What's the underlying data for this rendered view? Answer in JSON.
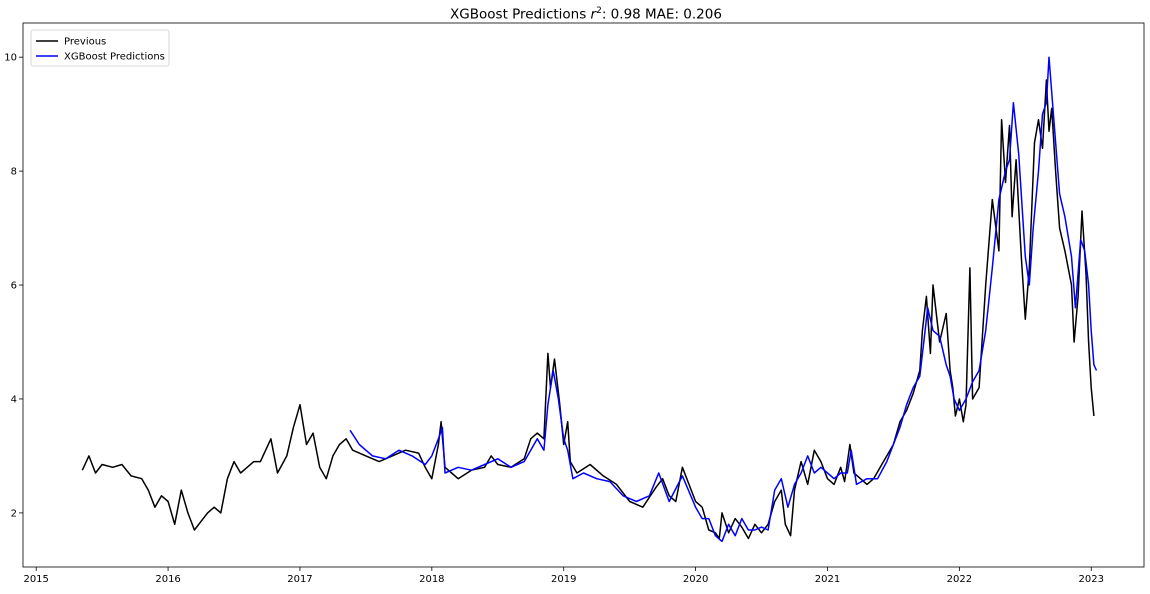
{
  "chart_data": {
    "type": "line",
    "title_prefix": "XGBoost Predictions ",
    "title_r": "r",
    "title_sup": "2",
    "title_suffix": ": 0.98 MAE: 0.206",
    "xlabel": "",
    "ylabel": "",
    "xlim": [
      2014.9,
      2023.4
    ],
    "ylim": [
      1.05,
      10.6
    ],
    "x_ticks": [
      2015,
      2016,
      2017,
      2018,
      2019,
      2020,
      2021,
      2022,
      2023
    ],
    "x_tick_labels": [
      "2015",
      "2016",
      "2017",
      "2018",
      "2019",
      "2020",
      "2021",
      "2022",
      "2023"
    ],
    "y_ticks": [
      2,
      4,
      6,
      8,
      10
    ],
    "y_tick_labels": [
      "2",
      "4",
      "6",
      "8",
      "10"
    ],
    "grid": false,
    "legend_position": "top-left",
    "series": [
      {
        "name": "Previous",
        "color": "#000000",
        "points": [
          [
            2015.35,
            2.75
          ],
          [
            2015.4,
            3.0
          ],
          [
            2015.45,
            2.7
          ],
          [
            2015.5,
            2.85
          ],
          [
            2015.58,
            2.8
          ],
          [
            2015.65,
            2.85
          ],
          [
            2015.72,
            2.65
          ],
          [
            2015.8,
            2.6
          ],
          [
            2015.85,
            2.4
          ],
          [
            2015.9,
            2.1
          ],
          [
            2015.95,
            2.3
          ],
          [
            2016.0,
            2.2
          ],
          [
            2016.05,
            1.8
          ],
          [
            2016.1,
            2.4
          ],
          [
            2016.15,
            2.0
          ],
          [
            2016.2,
            1.7
          ],
          [
            2016.25,
            1.85
          ],
          [
            2016.3,
            2.0
          ],
          [
            2016.35,
            2.1
          ],
          [
            2016.4,
            2.0
          ],
          [
            2016.45,
            2.6
          ],
          [
            2016.5,
            2.9
          ],
          [
            2016.55,
            2.7
          ],
          [
            2016.6,
            2.8
          ],
          [
            2016.65,
            2.9
          ],
          [
            2016.7,
            2.9
          ],
          [
            2016.78,
            3.3
          ],
          [
            2016.83,
            2.7
          ],
          [
            2016.9,
            3.0
          ],
          [
            2016.95,
            3.5
          ],
          [
            2017.0,
            3.9
          ],
          [
            2017.05,
            3.2
          ],
          [
            2017.1,
            3.4
          ],
          [
            2017.15,
            2.8
          ],
          [
            2017.2,
            2.6
          ],
          [
            2017.25,
            3.0
          ],
          [
            2017.3,
            3.2
          ],
          [
            2017.35,
            3.3
          ],
          [
            2017.4,
            3.1
          ],
          [
            2017.5,
            3.0
          ],
          [
            2017.6,
            2.9
          ],
          [
            2017.7,
            3.0
          ],
          [
            2017.8,
            3.1
          ],
          [
            2017.9,
            3.05
          ],
          [
            2017.95,
            2.8
          ],
          [
            2018.0,
            2.6
          ],
          [
            2018.05,
            3.2
          ],
          [
            2018.07,
            3.6
          ],
          [
            2018.1,
            2.8
          ],
          [
            2018.15,
            2.7
          ],
          [
            2018.2,
            2.6
          ],
          [
            2018.3,
            2.75
          ],
          [
            2018.4,
            2.8
          ],
          [
            2018.45,
            3.0
          ],
          [
            2018.5,
            2.85
          ],
          [
            2018.6,
            2.8
          ],
          [
            2018.7,
            2.95
          ],
          [
            2018.75,
            3.3
          ],
          [
            2018.8,
            3.4
          ],
          [
            2018.85,
            3.3
          ],
          [
            2018.88,
            4.8
          ],
          [
            2018.9,
            4.2
          ],
          [
            2018.93,
            4.7
          ],
          [
            2018.97,
            3.9
          ],
          [
            2019.0,
            3.2
          ],
          [
            2019.03,
            3.6
          ],
          [
            2019.05,
            2.9
          ],
          [
            2019.1,
            2.7
          ],
          [
            2019.2,
            2.85
          ],
          [
            2019.3,
            2.65
          ],
          [
            2019.4,
            2.5
          ],
          [
            2019.5,
            2.2
          ],
          [
            2019.6,
            2.1
          ],
          [
            2019.7,
            2.45
          ],
          [
            2019.75,
            2.6
          ],
          [
            2019.8,
            2.3
          ],
          [
            2019.85,
            2.2
          ],
          [
            2019.9,
            2.8
          ],
          [
            2019.95,
            2.5
          ],
          [
            2020.0,
            2.2
          ],
          [
            2020.05,
            2.1
          ],
          [
            2020.1,
            1.7
          ],
          [
            2020.15,
            1.65
          ],
          [
            2020.18,
            1.55
          ],
          [
            2020.2,
            2.0
          ],
          [
            2020.25,
            1.65
          ],
          [
            2020.3,
            1.9
          ],
          [
            2020.35,
            1.75
          ],
          [
            2020.4,
            1.55
          ],
          [
            2020.45,
            1.8
          ],
          [
            2020.5,
            1.65
          ],
          [
            2020.55,
            1.8
          ],
          [
            2020.6,
            2.2
          ],
          [
            2020.65,
            2.4
          ],
          [
            2020.68,
            1.8
          ],
          [
            2020.72,
            1.6
          ],
          [
            2020.75,
            2.4
          ],
          [
            2020.8,
            2.9
          ],
          [
            2020.85,
            2.5
          ],
          [
            2020.9,
            3.1
          ],
          [
            2020.95,
            2.9
          ],
          [
            2021.0,
            2.6
          ],
          [
            2021.05,
            2.5
          ],
          [
            2021.1,
            2.8
          ],
          [
            2021.13,
            2.55
          ],
          [
            2021.17,
            3.2
          ],
          [
            2021.2,
            2.7
          ],
          [
            2021.25,
            2.6
          ],
          [
            2021.3,
            2.5
          ],
          [
            2021.35,
            2.6
          ],
          [
            2021.4,
            2.8
          ],
          [
            2021.45,
            3.0
          ],
          [
            2021.5,
            3.2
          ],
          [
            2021.55,
            3.6
          ],
          [
            2021.6,
            3.8
          ],
          [
            2021.65,
            4.1
          ],
          [
            2021.7,
            4.5
          ],
          [
            2021.72,
            5.2
          ],
          [
            2021.75,
            5.8
          ],
          [
            2021.78,
            4.8
          ],
          [
            2021.8,
            6.0
          ],
          [
            2021.85,
            5.0
          ],
          [
            2021.9,
            5.5
          ],
          [
            2021.93,
            4.5
          ],
          [
            2021.95,
            4.2
          ],
          [
            2021.97,
            3.7
          ],
          [
            2022.0,
            4.0
          ],
          [
            2022.03,
            3.6
          ],
          [
            2022.05,
            3.9
          ],
          [
            2022.08,
            6.3
          ],
          [
            2022.1,
            4.0
          ],
          [
            2022.15,
            4.2
          ],
          [
            2022.2,
            6.0
          ],
          [
            2022.25,
            7.5
          ],
          [
            2022.3,
            6.6
          ],
          [
            2022.32,
            8.9
          ],
          [
            2022.35,
            7.8
          ],
          [
            2022.38,
            8.8
          ],
          [
            2022.4,
            7.2
          ],
          [
            2022.43,
            8.2
          ],
          [
            2022.47,
            6.5
          ],
          [
            2022.5,
            5.4
          ],
          [
            2022.53,
            6.3
          ],
          [
            2022.57,
            8.5
          ],
          [
            2022.6,
            8.9
          ],
          [
            2022.63,
            8.4
          ],
          [
            2022.66,
            9.6
          ],
          [
            2022.68,
            8.7
          ],
          [
            2022.7,
            9.1
          ],
          [
            2022.73,
            8.0
          ],
          [
            2022.76,
            7.0
          ],
          [
            2022.8,
            6.6
          ],
          [
            2022.85,
            6.0
          ],
          [
            2022.87,
            5.0
          ],
          [
            2022.9,
            5.8
          ],
          [
            2022.93,
            7.3
          ],
          [
            2022.96,
            6.2
          ],
          [
            2022.98,
            5.0
          ],
          [
            2023.0,
            4.2
          ],
          [
            2023.02,
            3.7
          ]
        ]
      },
      {
        "name": "XGBoost Predictions",
        "color": "#0000ff",
        "points": [
          [
            2017.38,
            3.45
          ],
          [
            2017.45,
            3.2
          ],
          [
            2017.55,
            3.0
          ],
          [
            2017.65,
            2.95
          ],
          [
            2017.75,
            3.1
          ],
          [
            2017.85,
            3.0
          ],
          [
            2017.95,
            2.85
          ],
          [
            2018.0,
            3.0
          ],
          [
            2018.05,
            3.3
          ],
          [
            2018.08,
            3.5
          ],
          [
            2018.1,
            2.7
          ],
          [
            2018.2,
            2.8
          ],
          [
            2018.3,
            2.75
          ],
          [
            2018.4,
            2.85
          ],
          [
            2018.5,
            2.95
          ],
          [
            2018.6,
            2.8
          ],
          [
            2018.7,
            2.9
          ],
          [
            2018.8,
            3.3
          ],
          [
            2018.85,
            3.1
          ],
          [
            2018.88,
            3.9
          ],
          [
            2018.92,
            4.5
          ],
          [
            2018.96,
            4.0
          ],
          [
            2019.0,
            3.3
          ],
          [
            2019.03,
            3.1
          ],
          [
            2019.07,
            2.6
          ],
          [
            2019.15,
            2.7
          ],
          [
            2019.25,
            2.6
          ],
          [
            2019.35,
            2.55
          ],
          [
            2019.45,
            2.3
          ],
          [
            2019.55,
            2.2
          ],
          [
            2019.65,
            2.3
          ],
          [
            2019.72,
            2.7
          ],
          [
            2019.8,
            2.2
          ],
          [
            2019.9,
            2.65
          ],
          [
            2020.0,
            2.1
          ],
          [
            2020.05,
            1.9
          ],
          [
            2020.1,
            1.9
          ],
          [
            2020.15,
            1.6
          ],
          [
            2020.2,
            1.5
          ],
          [
            2020.25,
            1.8
          ],
          [
            2020.3,
            1.6
          ],
          [
            2020.35,
            1.9
          ],
          [
            2020.4,
            1.7
          ],
          [
            2020.45,
            1.7
          ],
          [
            2020.5,
            1.75
          ],
          [
            2020.55,
            1.7
          ],
          [
            2020.6,
            2.4
          ],
          [
            2020.65,
            2.6
          ],
          [
            2020.7,
            2.1
          ],
          [
            2020.75,
            2.5
          ],
          [
            2020.8,
            2.7
          ],
          [
            2020.85,
            3.0
          ],
          [
            2020.9,
            2.7
          ],
          [
            2020.95,
            2.8
          ],
          [
            2021.0,
            2.7
          ],
          [
            2021.05,
            2.6
          ],
          [
            2021.1,
            2.7
          ],
          [
            2021.15,
            2.7
          ],
          [
            2021.18,
            3.1
          ],
          [
            2021.22,
            2.5
          ],
          [
            2021.3,
            2.6
          ],
          [
            2021.38,
            2.6
          ],
          [
            2021.45,
            2.9
          ],
          [
            2021.5,
            3.2
          ],
          [
            2021.55,
            3.5
          ],
          [
            2021.6,
            3.9
          ],
          [
            2021.65,
            4.2
          ],
          [
            2021.7,
            4.4
          ],
          [
            2021.73,
            5.0
          ],
          [
            2021.76,
            5.6
          ],
          [
            2021.8,
            5.2
          ],
          [
            2021.85,
            5.1
          ],
          [
            2021.9,
            4.6
          ],
          [
            2021.93,
            4.4
          ],
          [
            2021.96,
            4.0
          ],
          [
            2022.0,
            3.8
          ],
          [
            2022.05,
            4.0
          ],
          [
            2022.1,
            4.3
          ],
          [
            2022.15,
            4.5
          ],
          [
            2022.2,
            5.2
          ],
          [
            2022.25,
            6.3
          ],
          [
            2022.3,
            7.5
          ],
          [
            2022.35,
            8.0
          ],
          [
            2022.38,
            8.2
          ],
          [
            2022.41,
            9.2
          ],
          [
            2022.45,
            8.3
          ],
          [
            2022.5,
            6.5
          ],
          [
            2022.53,
            6.0
          ],
          [
            2022.56,
            7.0
          ],
          [
            2022.6,
            8.0
          ],
          [
            2022.63,
            9.0
          ],
          [
            2022.66,
            9.2
          ],
          [
            2022.68,
            10.0
          ],
          [
            2022.72,
            8.8
          ],
          [
            2022.76,
            7.6
          ],
          [
            2022.8,
            7.2
          ],
          [
            2022.85,
            6.5
          ],
          [
            2022.88,
            5.6
          ],
          [
            2022.92,
            6.8
          ],
          [
            2022.95,
            6.6
          ],
          [
            2022.98,
            6.0
          ],
          [
            2023.0,
            5.2
          ],
          [
            2023.02,
            4.6
          ],
          [
            2023.04,
            4.5
          ]
        ]
      }
    ]
  }
}
